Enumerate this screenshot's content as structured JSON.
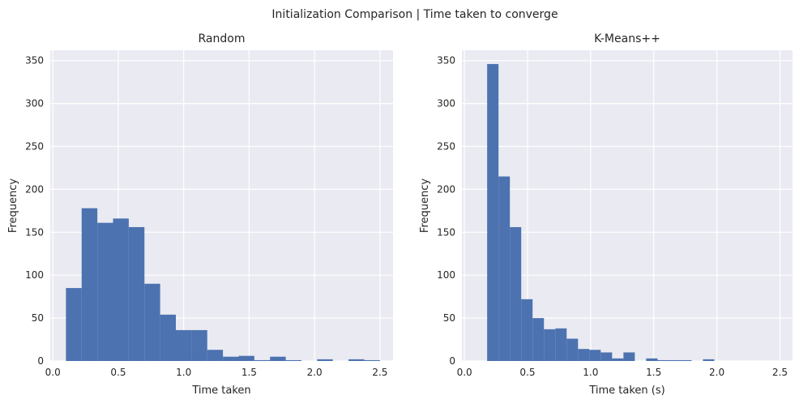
{
  "figure": {
    "title": "Initialization Comparison | Time taken to converge",
    "background": "#ffffff",
    "axes_facecolor": "#eaeaf2",
    "grid_color": "#ffffff",
    "bar_color": "#4c72b0"
  },
  "chart_data": [
    {
      "type": "bar",
      "subtype": "histogram",
      "title": "Random",
      "xlabel": "Time taken",
      "ylabel": "Frequency",
      "xlim": [
        -0.02,
        2.6
      ],
      "ylim": [
        0,
        362
      ],
      "xticks": [
        0.0,
        0.5,
        1.0,
        1.5,
        2.0,
        2.5
      ],
      "xtick_labels": [
        "0.0",
        "0.5",
        "1.0",
        "1.5",
        "2.0",
        "2.5"
      ],
      "yticks": [
        0,
        50,
        100,
        150,
        200,
        250,
        300,
        350
      ],
      "ytick_labels": [
        "0",
        "50",
        "100",
        "150",
        "200",
        "250",
        "300",
        "350"
      ],
      "grid": true,
      "bin_edges": [
        0.1,
        0.22,
        0.34,
        0.46,
        0.58,
        0.7,
        0.82,
        0.94,
        1.06,
        1.18,
        1.3,
        1.42,
        1.54,
        1.66,
        1.78,
        1.9,
        2.02,
        2.14,
        2.26,
        2.38,
        2.5
      ],
      "counts": [
        85,
        178,
        161,
        166,
        156,
        90,
        54,
        36,
        36,
        13,
        5,
        6,
        1,
        5,
        1,
        0,
        2,
        0,
        2,
        1
      ]
    },
    {
      "type": "bar",
      "subtype": "histogram",
      "title": "K-Means++",
      "xlabel": "Time taken (s)",
      "ylabel": "Frequency",
      "xlim": [
        -0.02,
        2.6
      ],
      "ylim": [
        0,
        362
      ],
      "xticks": [
        0.0,
        0.5,
        1.0,
        1.5,
        2.0,
        2.5
      ],
      "xtick_labels": [
        "0.0",
        "0.5",
        "1.0",
        "1.5",
        "2.0",
        "2.5"
      ],
      "yticks": [
        0,
        50,
        100,
        150,
        200,
        250,
        300,
        350
      ],
      "ytick_labels": [
        "0",
        "50",
        "100",
        "150",
        "200",
        "250",
        "300",
        "350"
      ],
      "grid": true,
      "bin_edges": [
        0.18,
        0.27,
        0.36,
        0.45,
        0.54,
        0.63,
        0.72,
        0.81,
        0.9,
        0.99,
        1.08,
        1.17,
        1.26,
        1.35,
        1.44,
        1.53,
        1.62,
        1.71,
        1.8,
        1.89,
        1.98
      ],
      "counts": [
        346,
        215,
        156,
        72,
        50,
        37,
        38,
        26,
        14,
        13,
        10,
        3,
        10,
        0,
        3,
        1,
        1,
        1,
        0,
        2
      ]
    }
  ]
}
